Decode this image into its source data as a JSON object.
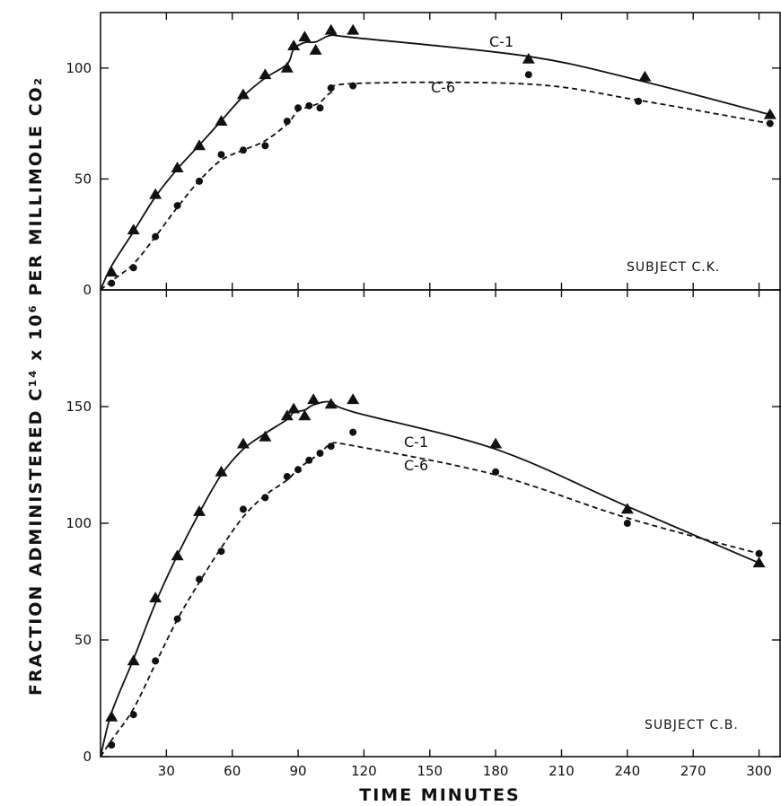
{
  "chart_data": [
    {
      "type": "scatter",
      "panel_label": "SUBJECT C.K.",
      "xlabel": "TIME MINUTES",
      "ylabel": "FRACTION ADMINISTERED C¹⁴ x 10⁶ PER MILLIMOLE CO₂",
      "xlim": [
        0,
        310
      ],
      "ylim": [
        0,
        125
      ],
      "x_ticks": [
        30,
        60,
        90,
        120,
        150,
        180,
        210,
        240,
        270,
        300
      ],
      "y_ticks": [
        0,
        50,
        100
      ],
      "series": [
        {
          "name": "C-1",
          "marker": "triangle",
          "line": "solid",
          "x": [
            5,
            15,
            25,
            35,
            45,
            55,
            65,
            75,
            85,
            88,
            93,
            98,
            105,
            115,
            195,
            248,
            305
          ],
          "y": [
            8,
            27,
            43,
            55,
            65,
            76,
            88,
            97,
            100,
            110,
            114,
            108,
            117,
            117,
            104,
            96,
            79
          ]
        },
        {
          "name": "C-6",
          "marker": "circle",
          "line": "dashed",
          "x": [
            5,
            15,
            25,
            35,
            45,
            55,
            65,
            75,
            85,
            90,
            95,
            100,
            105,
            115,
            195,
            245,
            305
          ],
          "y": [
            3,
            10,
            24,
            38,
            49,
            61,
            63,
            65,
            76,
            82,
            83,
            82,
            91,
            92,
            97,
            85,
            75
          ]
        }
      ]
    },
    {
      "type": "scatter",
      "panel_label": "SUBJECT C.B.",
      "xlabel": "TIME MINUTES",
      "ylabel": "FRACTION ADMINISTERED C¹⁴ x 10⁶ PER MILLIMOLE CO₂",
      "xlim": [
        0,
        310
      ],
      "ylim": [
        0,
        200
      ],
      "x_ticks": [
        30,
        60,
        90,
        120,
        150,
        180,
        210,
        240,
        270,
        300
      ],
      "y_ticks": [
        0,
        50,
        100,
        150
      ],
      "series": [
        {
          "name": "C-1",
          "marker": "triangle",
          "line": "solid",
          "x": [
            5,
            15,
            25,
            35,
            45,
            55,
            65,
            75,
            85,
            88,
            93,
            97,
            105,
            115,
            180,
            240,
            300
          ],
          "y": [
            17,
            41,
            68,
            86,
            105,
            122,
            134,
            137,
            146,
            149,
            146,
            153,
            151,
            153,
            134,
            106,
            83
          ]
        },
        {
          "name": "C-6",
          "marker": "circle",
          "line": "dashed",
          "x": [
            5,
            15,
            25,
            35,
            45,
            55,
            65,
            75,
            85,
            90,
            95,
            100,
            105,
            115,
            180,
            240,
            300
          ],
          "y": [
            5,
            18,
            41,
            59,
            76,
            88,
            106,
            111,
            120,
            123,
            127,
            130,
            133,
            139,
            122,
            100,
            87
          ]
        }
      ]
    }
  ]
}
